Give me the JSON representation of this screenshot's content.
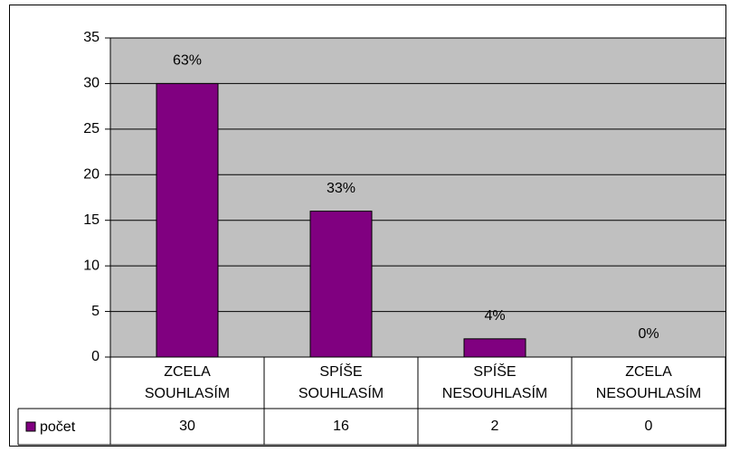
{
  "chart_data": {
    "type": "bar",
    "categories": [
      "ZCELA SOUHLASÍM",
      "SPÍŠE SOUHLASÍM",
      "SPÍŠE NESOUHLASÍM",
      "ZCELA NESOUHLASÍM"
    ],
    "series": [
      {
        "name": "počet",
        "color": "#800080",
        "values": [
          30,
          16,
          2,
          0
        ]
      }
    ],
    "percent_labels": [
      "63%",
      "33%",
      "4%",
      "0%"
    ],
    "ylim": [
      0,
      35
    ],
    "yticks": [
      0,
      5,
      10,
      15,
      20,
      25,
      30,
      35
    ],
    "grid": true,
    "data_table": true
  }
}
